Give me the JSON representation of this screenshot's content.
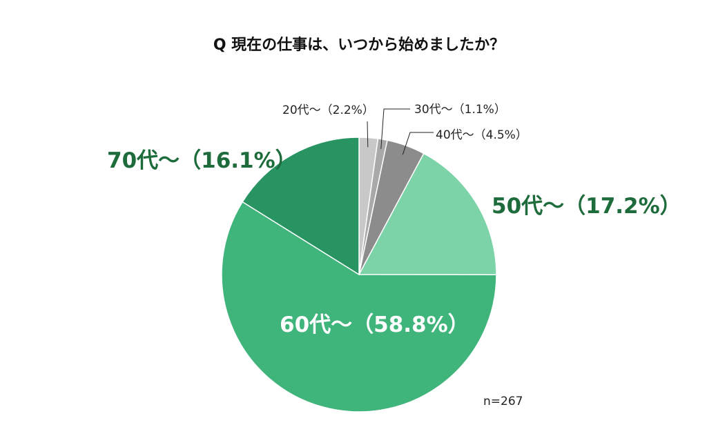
{
  "chart_data": {
    "type": "pie",
    "title": "Q 現在の仕事は、いつから始めましたか？",
    "slices": [
      {
        "label": "20代〜（2.2%）",
        "value": 2.2,
        "color": "#c8c8c8"
      },
      {
        "label": "30代〜（1.1%）",
        "value": 1.1,
        "color": "#a9a9a9"
      },
      {
        "label": "40代〜（4.5%）",
        "value": 4.5,
        "color": "#8c8c8c"
      },
      {
        "label": "50代〜（17.2%）",
        "value": 17.2,
        "color": "#7dd3a8"
      },
      {
        "label": "60代〜（58.8%）",
        "value": 58.8,
        "color": "#3fb57c"
      },
      {
        "label": "70代〜（16.1%）",
        "value": 16.1,
        "color": "#279462"
      }
    ],
    "note": "n=267",
    "start": "12 o'clock, clockwise"
  }
}
